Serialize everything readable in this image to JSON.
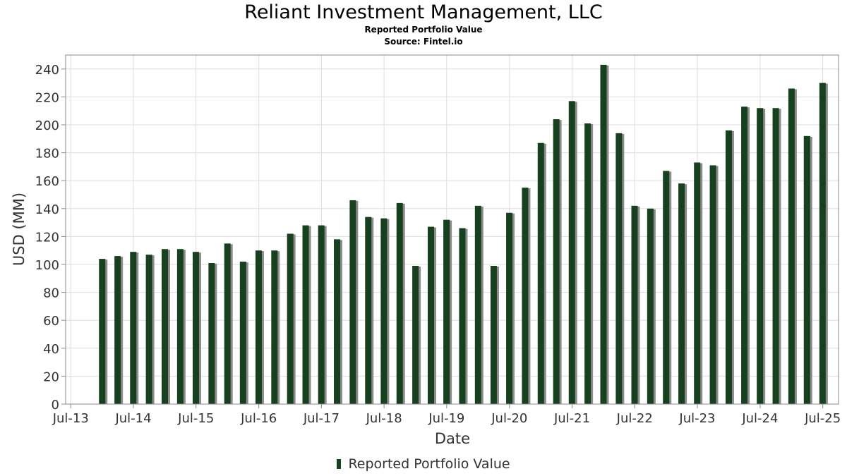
{
  "header": {
    "title": "Reliant Investment Management, LLC",
    "subtitle": "Reported Portfolio Value",
    "source": "Source: Fintel.io"
  },
  "colors": {
    "bar": "#17401f",
    "bar_shadow": "#8c8c8c",
    "grid": "#dddddd",
    "axis": "#888888",
    "text": "#333333"
  },
  "chart_data": {
    "type": "bar",
    "title": "Reliant Investment Management, LLC",
    "subtitle": "Reported Portfolio Value",
    "xlabel": "Date",
    "ylabel": "USD (MM)",
    "ylim": [
      0,
      250
    ],
    "yticks": [
      0,
      20,
      40,
      60,
      80,
      100,
      120,
      140,
      160,
      180,
      200,
      220,
      240
    ],
    "xlim": [
      "2013-06-01",
      "2025-10-01"
    ],
    "xticks": [
      {
        "label": "Jul-13",
        "date": "2013-07-01"
      },
      {
        "label": "Jul-14",
        "date": "2014-07-01"
      },
      {
        "label": "Jul-15",
        "date": "2015-07-01"
      },
      {
        "label": "Jul-16",
        "date": "2016-07-01"
      },
      {
        "label": "Jul-17",
        "date": "2017-07-01"
      },
      {
        "label": "Jul-18",
        "date": "2018-07-01"
      },
      {
        "label": "Jul-19",
        "date": "2019-07-01"
      },
      {
        "label": "Jul-20",
        "date": "2020-07-01"
      },
      {
        "label": "Jul-21",
        "date": "2021-07-01"
      },
      {
        "label": "Jul-22",
        "date": "2022-07-01"
      },
      {
        "label": "Jul-23",
        "date": "2023-07-01"
      },
      {
        "label": "Jul-24",
        "date": "2024-07-01"
      },
      {
        "label": "Jul-25",
        "date": "2025-07-01"
      }
    ],
    "grid": true,
    "legend_position": "bottom-center",
    "series": [
      {
        "name": "Reported Portfolio Value",
        "color": "#17401f",
        "x": [
          "2013-12-31",
          "2014-03-31",
          "2014-06-30",
          "2014-09-30",
          "2014-12-31",
          "2015-03-31",
          "2015-06-30",
          "2015-09-30",
          "2015-12-31",
          "2016-03-31",
          "2016-06-30",
          "2016-09-30",
          "2016-12-31",
          "2017-03-31",
          "2017-06-30",
          "2017-09-30",
          "2017-12-31",
          "2018-03-31",
          "2018-06-30",
          "2018-09-30",
          "2018-12-31",
          "2019-03-31",
          "2019-06-30",
          "2019-09-30",
          "2019-12-31",
          "2020-03-31",
          "2020-06-30",
          "2020-09-30",
          "2020-12-31",
          "2021-03-31",
          "2021-06-30",
          "2021-09-30",
          "2021-12-31",
          "2022-03-31",
          "2022-06-30",
          "2022-09-30",
          "2022-12-31",
          "2023-03-31",
          "2023-06-30",
          "2023-09-30",
          "2023-12-31",
          "2024-03-31",
          "2024-06-30",
          "2024-09-30",
          "2024-12-31",
          "2025-03-31",
          "2025-06-30"
        ],
        "values": [
          104,
          106,
          109,
          107,
          111,
          111,
          109,
          101,
          115,
          102,
          110,
          110,
          122,
          128,
          128,
          118,
          146,
          134,
          133,
          144,
          99,
          127,
          132,
          126,
          142,
          99,
          137,
          155,
          187,
          204,
          217,
          201,
          243,
          194,
          142,
          140,
          167,
          158,
          173,
          171,
          196,
          213,
          212,
          212,
          226,
          192,
          230
        ]
      }
    ]
  },
  "legend": {
    "items": [
      {
        "label": "Reported Portfolio Value",
        "color": "#17401f"
      }
    ]
  }
}
